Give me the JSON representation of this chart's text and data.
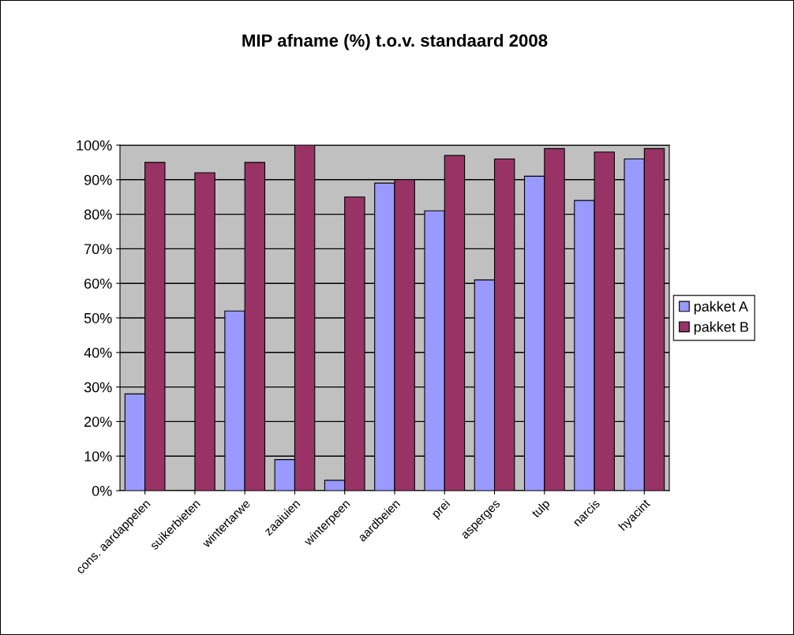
{
  "chart_data": {
    "type": "bar",
    "title": "MIP afname (%) t.o.v. standaard 2008",
    "categories": [
      "cons. aardappelen",
      "suikerbieten",
      "wintertarwe",
      "zaaiuien",
      "winterpeen",
      "aardbeien",
      "prei",
      "asperges",
      "tulp",
      "narcis",
      "hyacint"
    ],
    "series": [
      {
        "name": "pakket A",
        "color": "#9999ff",
        "values": [
          28,
          0,
          52,
          9,
          3,
          89,
          81,
          61,
          91,
          84,
          96
        ]
      },
      {
        "name": "pakket B",
        "color": "#993366",
        "values": [
          95,
          92,
          95,
          100,
          85,
          90,
          97,
          96,
          99,
          98,
          99
        ]
      }
    ],
    "ylim": [
      0,
      100
    ],
    "yticks": [
      {
        "value": 0,
        "label": "0%"
      },
      {
        "value": 10,
        "label": "10%"
      },
      {
        "value": 20,
        "label": "20%"
      },
      {
        "value": 30,
        "label": "30%"
      },
      {
        "value": 40,
        "label": "40%"
      },
      {
        "value": 50,
        "label": "50%"
      },
      {
        "value": 60,
        "label": "60%"
      },
      {
        "value": 70,
        "label": "70%"
      },
      {
        "value": 80,
        "label": "80%"
      },
      {
        "value": 90,
        "label": "90%"
      },
      {
        "value": 100,
        "label": "100%"
      }
    ],
    "grid": "y",
    "legend": "right"
  }
}
